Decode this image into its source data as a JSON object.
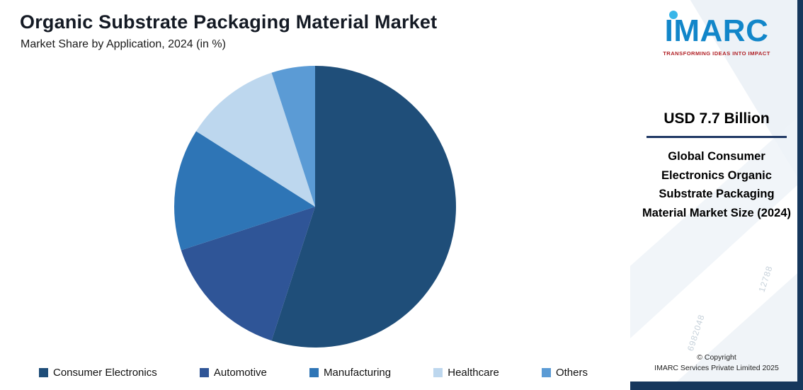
{
  "header": {
    "title": "Organic Substrate Packaging Material Market",
    "subtitle": "Market Share by Application, 2024 (in %)"
  },
  "chart_data": {
    "type": "pie",
    "title": "Organic Substrate Packaging Material Market",
    "subtitle": "Market Share by Application, 2024 (in %)",
    "labels": [
      "Consumer Electronics",
      "Automotive",
      "Manufacturing",
      "Healthcare",
      "Others"
    ],
    "values": [
      55,
      15,
      14,
      11,
      5
    ],
    "unit": "%",
    "colors": [
      "#1F4E79",
      "#2F5597",
      "#2E75B6",
      "#BDD7EE",
      "#5B9BD5"
    ],
    "start_angle_deg": 0,
    "direction": "clockwise",
    "legend_position": "bottom"
  },
  "sidebar": {
    "brand": "IMARC",
    "tagline": "TRANSFORMING IDEAS INTO IMPACT",
    "metric_value": "USD 7.7 Billion",
    "metric_label": "Global Consumer Electronics Organic Substrate Packaging Material Market Size (2024)",
    "copyright_line1": "© Copyright",
    "copyright_line2": "IMARC Services Private Limited 2025",
    "watermarks": [
      "6982048",
      "12788"
    ],
    "colors": {
      "brand_blue": "#1286c9",
      "brand_cyan": "#38b6e9",
      "tagline_red": "#b01f24",
      "accent_navy": "#1f3864",
      "band_navy": "#16375c"
    }
  }
}
